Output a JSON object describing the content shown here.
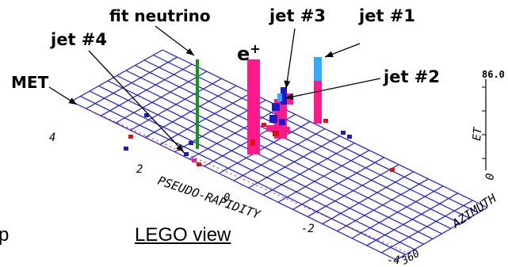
{
  "labels": {
    "fit_neutrino": "fit neutrino",
    "jet3": "jet #3",
    "jet1": "jet #1",
    "jet4": "jet #4",
    "e_plus_base": "e",
    "e_plus_sup": "+",
    "met": "MET",
    "jet2": "jet #2",
    "lego_view": "LEGO view",
    "left_fragment": "p"
  },
  "axes": {
    "et_label": "ET",
    "et_max": "86.0",
    "pseudo_rapidity_label": "PSEUDO-RAPIDITY",
    "azimuth_label": "AZIMUTH",
    "eta_ticks": [
      "4",
      "2",
      "0",
      "-2",
      "-4"
    ],
    "azimuth_ticks": [
      "0",
      "360"
    ]
  },
  "colors": {
    "grid": "#1a1ae6",
    "towers_em": "#ff1a8c",
    "towers_had": "#33aaff",
    "neutrino": "#119911",
    "hits_red": "#dd1111",
    "hits_blue": "#1a1acc"
  }
}
